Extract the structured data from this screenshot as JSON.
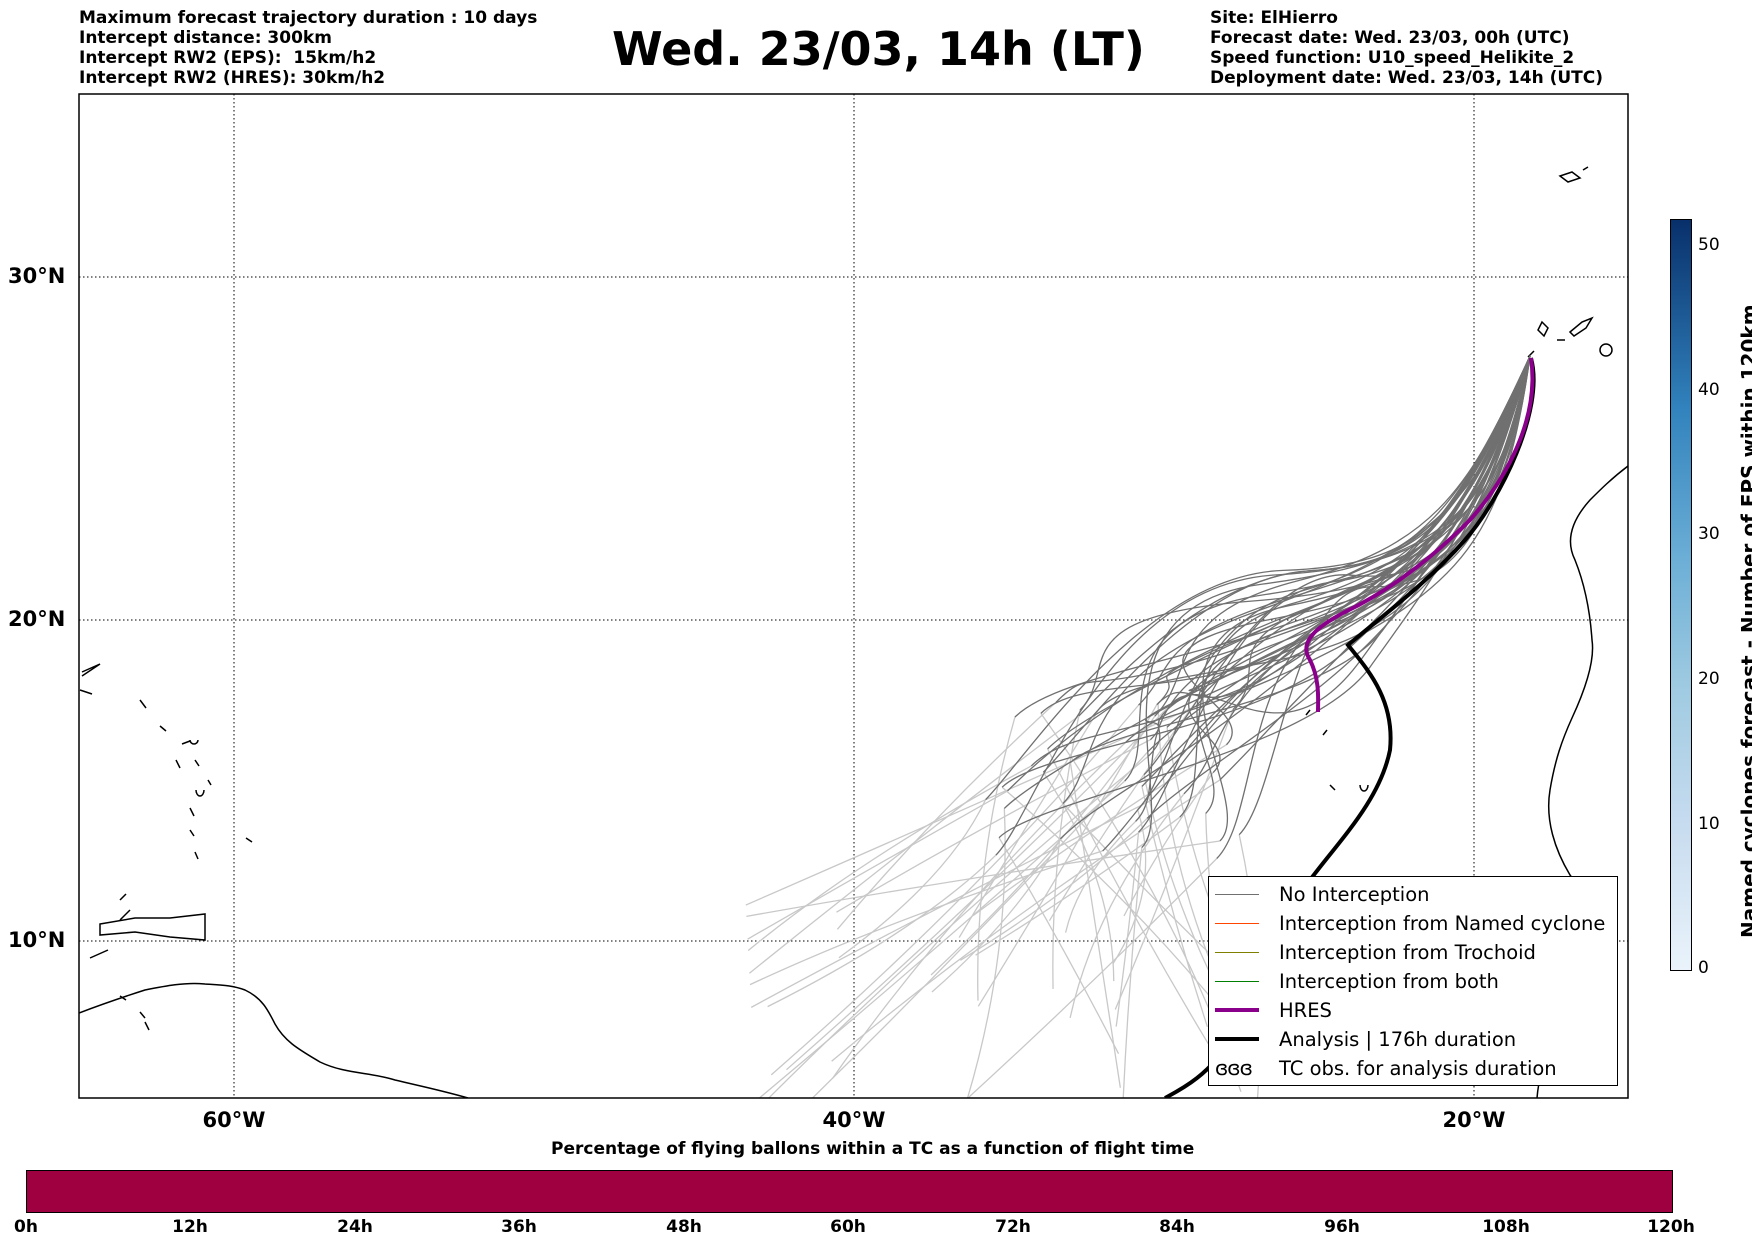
{
  "header": {
    "left_lines": [
      "Maximum forecast trajectory duration : 10 days",
      "Intercept distance: 300km",
      "Intercept RW2 (EPS):  15km/h2",
      "Intercept RW2 (HRES): 30km/h2"
    ],
    "title": "Wed. 23/03, 14h (LT)",
    "right_lines": [
      "Site: ElHierro",
      "Forecast date: Wed. 23/03, 00h (UTC)",
      "Speed function: U10_speed_Helikite_2",
      "Deployment date: Wed. 23/03, 14h (UTC)"
    ]
  },
  "map": {
    "lat_labels": [
      "30°N",
      "20°N",
      "10°N"
    ],
    "lon_labels": [
      "60°W",
      "40°W",
      "20°W"
    ],
    "line_colors": {
      "no_interception": "#707070",
      "no_interception_late": "#c8c8c8",
      "hres": "#8b008b",
      "analysis": "#000000"
    }
  },
  "legend": {
    "items": [
      {
        "label": "No Interception",
        "color": "#707070"
      },
      {
        "label": "Interception from Named cyclone",
        "color": "#ff4500"
      },
      {
        "label": "Interception from Trochoid",
        "color": "#808000"
      },
      {
        "label": "Interception from both",
        "color": "#008000"
      },
      {
        "label": "HRES",
        "color": "#8b008b"
      },
      {
        "label": "Analysis | 176h duration",
        "color": "#000000"
      },
      {
        "label": "TC obs. for analysis duration",
        "icon": "ɞɞɞ"
      }
    ]
  },
  "colorbar_right": {
    "title": "Named cyclones forecast - Number of EPS within 120km",
    "ticks": [
      "0",
      "10",
      "20",
      "30",
      "40",
      "50"
    ]
  },
  "colorbar_bottom": {
    "title": "Percentage of flying ballons within a TC as a function of flight time",
    "ticks": [
      "0h",
      "12h",
      "24h",
      "36h",
      "48h",
      "60h",
      "72h",
      "84h",
      "96h",
      "108h",
      "120h"
    ],
    "color": "#9e0040"
  }
}
